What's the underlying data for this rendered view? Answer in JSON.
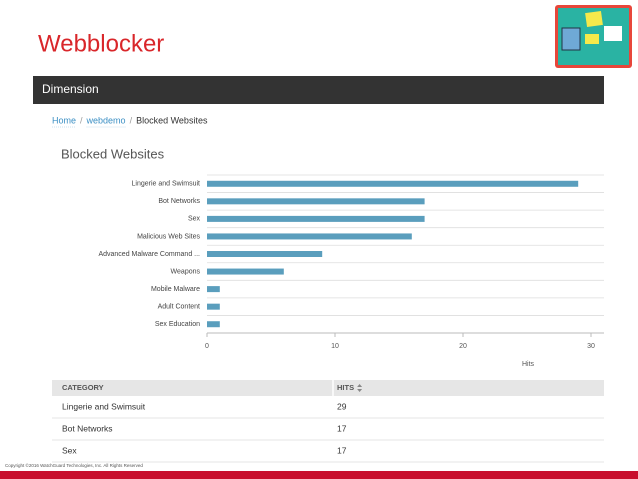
{
  "header": {
    "title": "Webblocker"
  },
  "nav": {
    "title": "Dimension"
  },
  "breadcrumb": {
    "items": [
      "Home",
      "webdemo",
      "Blocked Websites"
    ],
    "separator": "/"
  },
  "chart_data": {
    "type": "bar",
    "orientation": "horizontal",
    "title": "Blocked Websites",
    "categories": [
      "Lingerie and Swimsuit",
      "Bot Networks",
      "Sex",
      "Malicious Web Sites",
      "Advanced Malware Command ...",
      "Weapons",
      "Mobile Malware",
      "Adult Content",
      "Sex Education"
    ],
    "values": [
      29,
      17,
      17,
      16,
      9,
      6,
      1,
      1,
      1
    ],
    "color": "#5a9ebd",
    "xlabel": "Hits",
    "xlim": [
      0,
      30
    ],
    "xticks": [
      0,
      10,
      20,
      30
    ],
    "grid": true
  },
  "table": {
    "columns": [
      "CATEGORY",
      "HITS"
    ],
    "rows": [
      [
        "Lingerie and Swimsuit",
        29
      ],
      [
        "Bot Networks",
        17
      ],
      [
        "Sex",
        17
      ]
    ]
  },
  "footer": {
    "copyright": "Copyright ©2016 WatchGuard Technologies, Inc. All Rights Reserved"
  }
}
